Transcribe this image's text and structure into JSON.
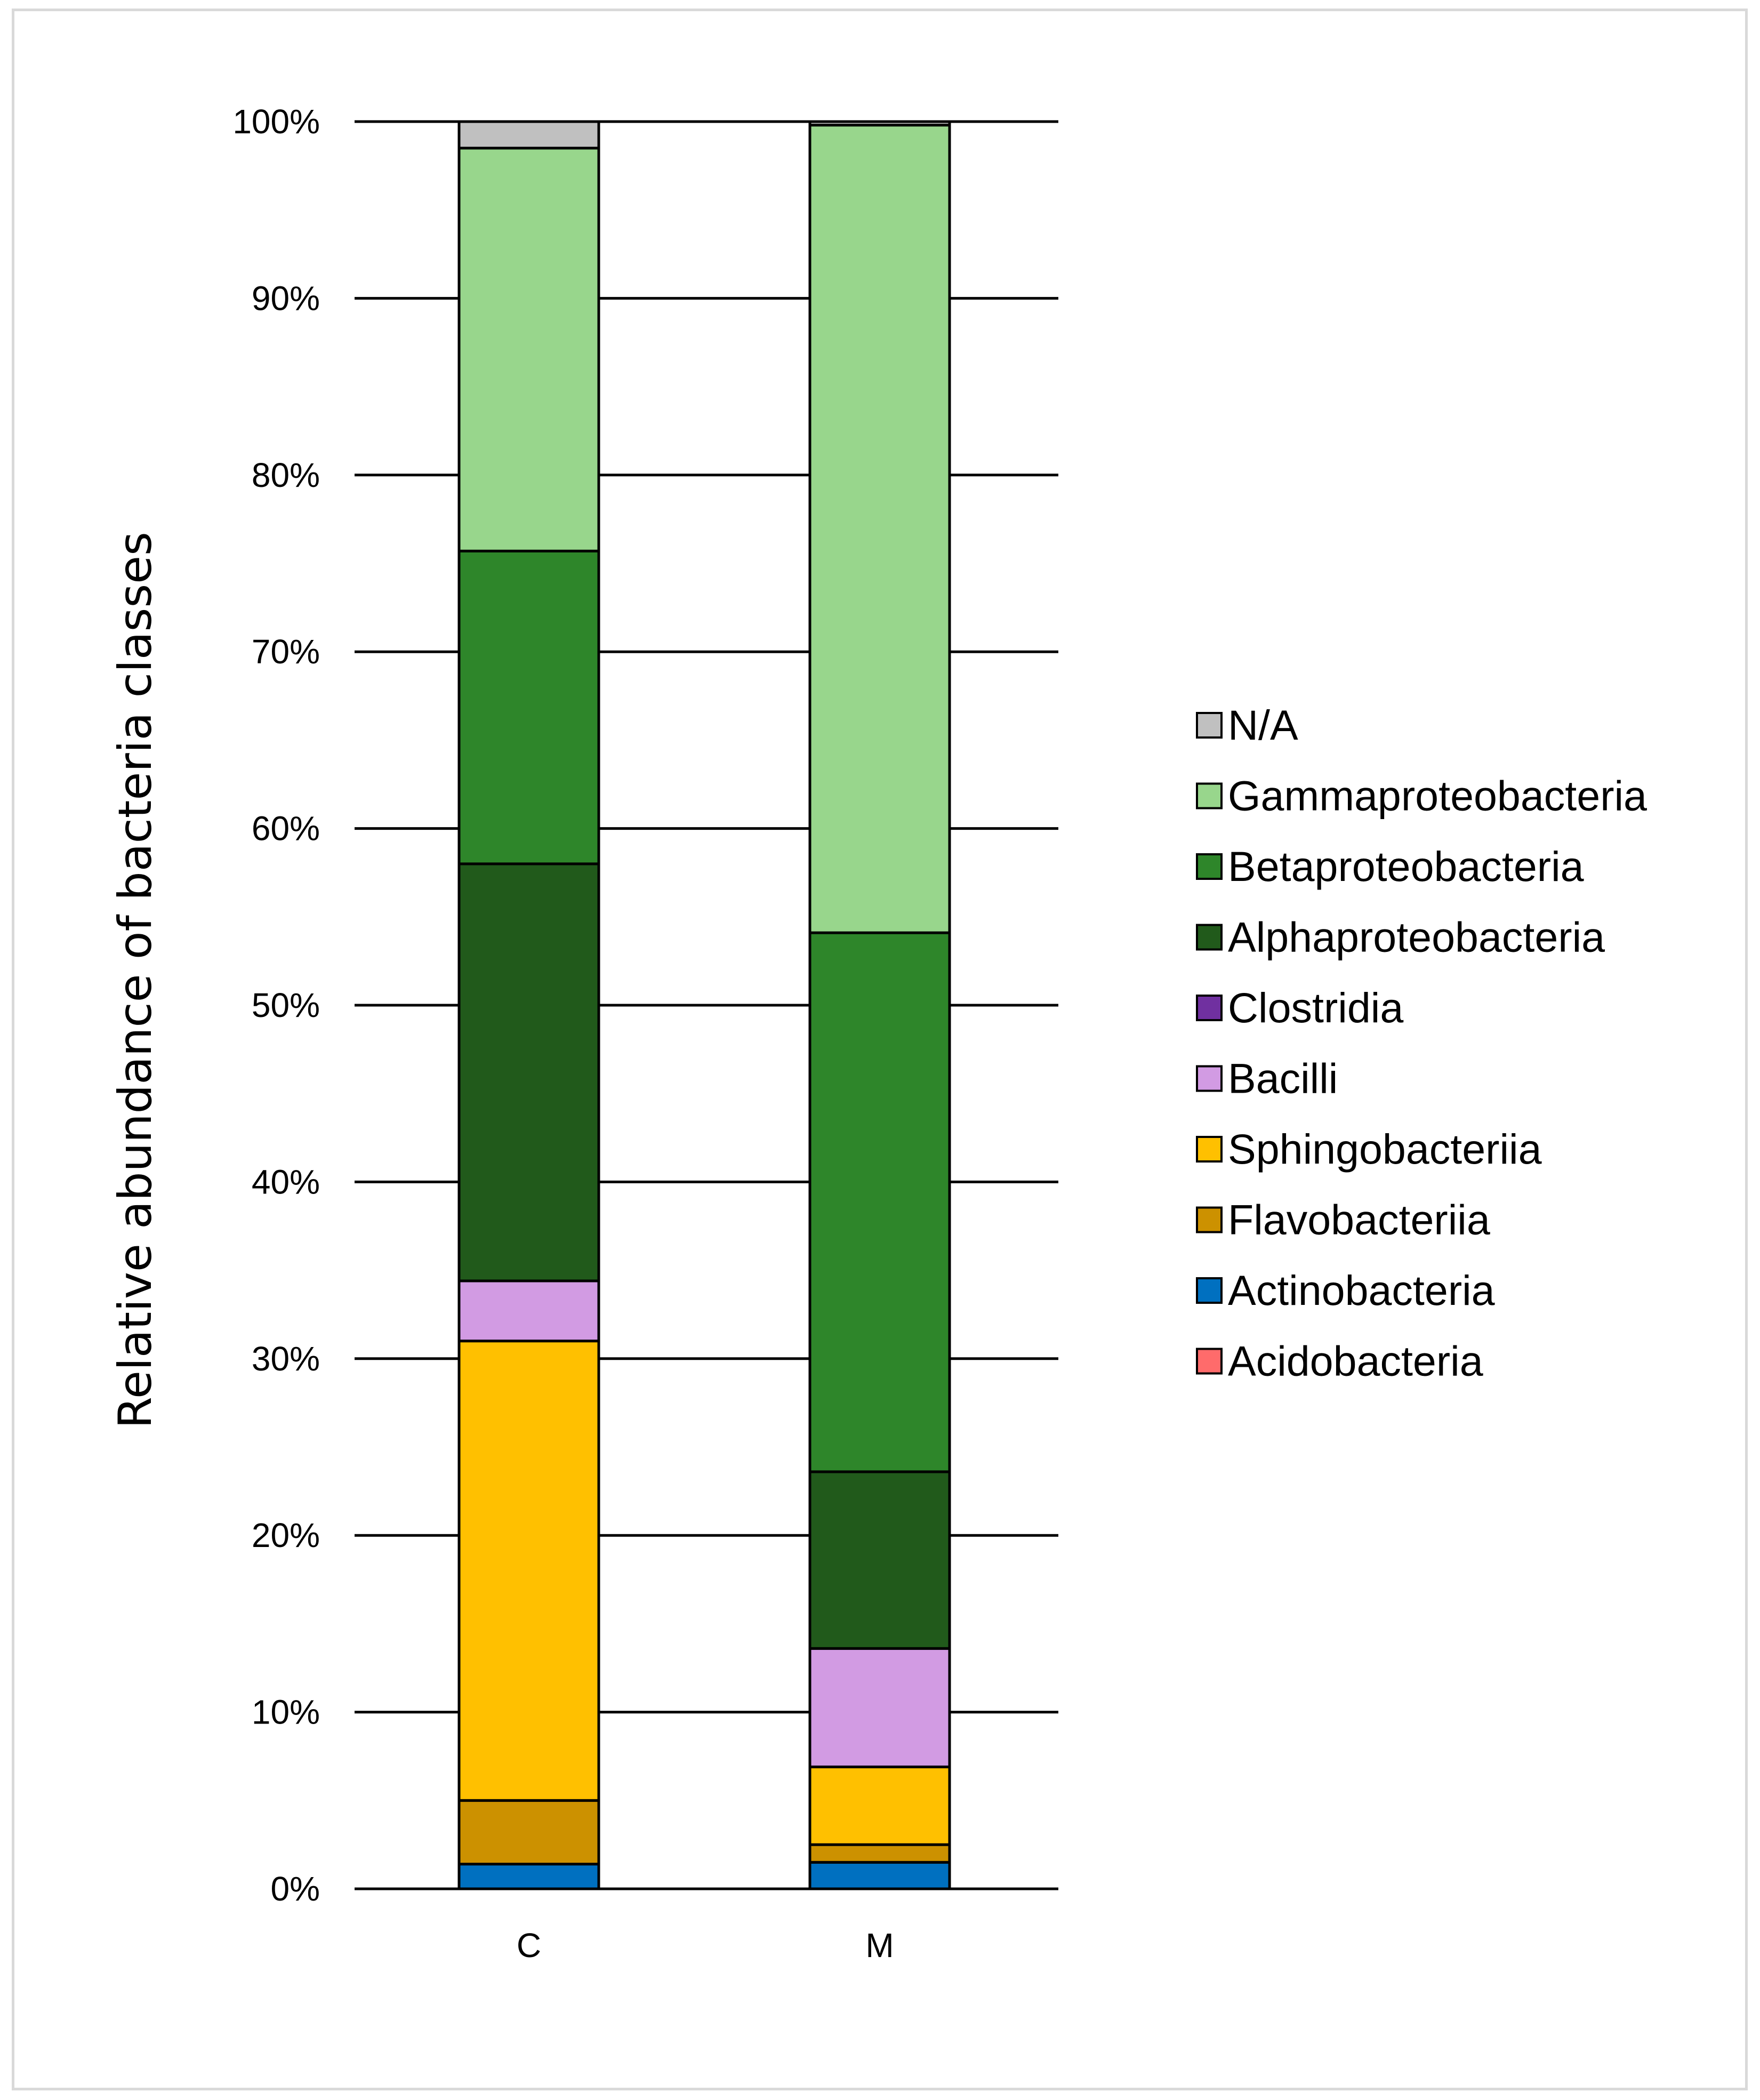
{
  "chart_data": {
    "type": "bar",
    "stacked": true,
    "title": "",
    "xlabel": "",
    "ylabel": "Relative abundance of bacteria classes",
    "ylim": [
      0,
      100
    ],
    "yticks": [
      "0%",
      "10%",
      "20%",
      "30%",
      "40%",
      "50%",
      "60%",
      "70%",
      "80%",
      "90%",
      "100%"
    ],
    "grid": true,
    "legend_position": "right",
    "categories": [
      "C",
      "M"
    ],
    "series": [
      {
        "name": "Acidobacteria",
        "color": "#ff6b6b",
        "values": [
          0.0,
          0.0
        ]
      },
      {
        "name": "Actinobacteria",
        "color": "#0070c0",
        "values": [
          1.4,
          1.5
        ]
      },
      {
        "name": "Flavobacteriia",
        "color": "#cc9100",
        "values": [
          3.6,
          1.0
        ]
      },
      {
        "name": "Sphingobacteriia",
        "color": "#ffc000",
        "values": [
          26.0,
          4.4
        ]
      },
      {
        "name": "Bacilli",
        "color": "#d29be3",
        "values": [
          3.4,
          6.7
        ]
      },
      {
        "name": "Clostridia",
        "color": "#7030a0",
        "values": [
          0.0,
          0.0
        ]
      },
      {
        "name": "Alphaproteobacteria",
        "color": "#215a1b",
        "values": [
          23.6,
          10.0
        ]
      },
      {
        "name": "Betaproteobacteria",
        "color": "#2e862a",
        "values": [
          17.7,
          30.5
        ]
      },
      {
        "name": "Gammaproteobacteria",
        "color": "#98d68c",
        "values": [
          22.8,
          45.7
        ]
      },
      {
        "name": "N/A",
        "color": "#c0c0c0",
        "values": [
          1.5,
          0.2
        ]
      }
    ],
    "legend_order": [
      "N/A",
      "Gammaproteobacteria",
      "Betaproteobacteria",
      "Alphaproteobacteria",
      "Clostridia",
      "Bacilli",
      "Sphingobacteriia",
      "Flavobacteriia",
      "Actinobacteria",
      "Acidobacteria"
    ]
  }
}
